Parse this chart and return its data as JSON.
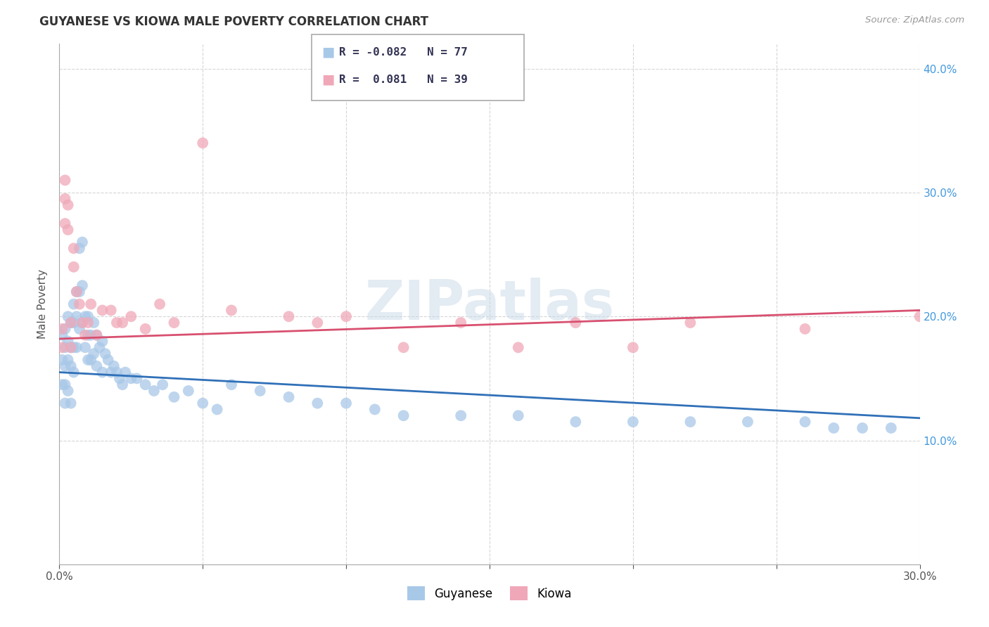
{
  "title": "GUYANESE VS KIOWA MALE POVERTY CORRELATION CHART",
  "source": "Source: ZipAtlas.com",
  "ylabel": "Male Poverty",
  "xlim": [
    0.0,
    0.3
  ],
  "ylim": [
    0.0,
    0.42
  ],
  "xticks": [
    0.0,
    0.05,
    0.1,
    0.15,
    0.2,
    0.25,
    0.3
  ],
  "xtick_labels": [
    "0.0%",
    "",
    "",
    "",
    "",
    "",
    "30.0%"
  ],
  "yticks": [
    0.0,
    0.1,
    0.2,
    0.3,
    0.4
  ],
  "ytick_labels_right": [
    "",
    "10.0%",
    "20.0%",
    "30.0%",
    "40.0%"
  ],
  "background_color": "#ffffff",
  "grid_color": "#cccccc",
  "watermark": "ZIPatlas",
  "legend_R1": "R = -0.082",
  "legend_N1": "N = 77",
  "legend_R2": "R =  0.081",
  "legend_N2": "N = 39",
  "guyanese_color": "#a8c8e8",
  "kiowa_color": "#f0a8b8",
  "guyanese_line_color": "#3070b8",
  "kiowa_line_color": "#d85070",
  "guyanese_x": [
    0.001,
    0.001,
    0.001,
    0.002,
    0.002,
    0.002,
    0.002,
    0.002,
    0.003,
    0.003,
    0.003,
    0.003,
    0.004,
    0.004,
    0.004,
    0.004,
    0.005,
    0.005,
    0.005,
    0.005,
    0.006,
    0.006,
    0.006,
    0.007,
    0.007,
    0.007,
    0.008,
    0.008,
    0.008,
    0.009,
    0.009,
    0.01,
    0.01,
    0.01,
    0.011,
    0.011,
    0.012,
    0.012,
    0.013,
    0.013,
    0.014,
    0.015,
    0.015,
    0.016,
    0.017,
    0.018,
    0.019,
    0.02,
    0.021,
    0.022,
    0.023,
    0.025,
    0.027,
    0.03,
    0.033,
    0.036,
    0.04,
    0.045,
    0.05,
    0.055,
    0.06,
    0.07,
    0.08,
    0.09,
    0.1,
    0.11,
    0.12,
    0.14,
    0.16,
    0.18,
    0.2,
    0.22,
    0.24,
    0.26,
    0.27,
    0.28,
    0.29
  ],
  "guyanese_y": [
    0.185,
    0.165,
    0.145,
    0.19,
    0.175,
    0.16,
    0.145,
    0.13,
    0.2,
    0.18,
    0.165,
    0.14,
    0.195,
    0.175,
    0.16,
    0.13,
    0.21,
    0.195,
    0.175,
    0.155,
    0.22,
    0.2,
    0.175,
    0.255,
    0.22,
    0.19,
    0.26,
    0.225,
    0.195,
    0.2,
    0.175,
    0.2,
    0.185,
    0.165,
    0.185,
    0.165,
    0.195,
    0.17,
    0.185,
    0.16,
    0.175,
    0.18,
    0.155,
    0.17,
    0.165,
    0.155,
    0.16,
    0.155,
    0.15,
    0.145,
    0.155,
    0.15,
    0.15,
    0.145,
    0.14,
    0.145,
    0.135,
    0.14,
    0.13,
    0.125,
    0.145,
    0.14,
    0.135,
    0.13,
    0.13,
    0.125,
    0.12,
    0.12,
    0.12,
    0.115,
    0.115,
    0.115,
    0.115,
    0.115,
    0.11,
    0.11,
    0.11
  ],
  "kiowa_x": [
    0.001,
    0.001,
    0.002,
    0.002,
    0.002,
    0.003,
    0.003,
    0.004,
    0.004,
    0.005,
    0.005,
    0.006,
    0.007,
    0.008,
    0.009,
    0.01,
    0.011,
    0.013,
    0.015,
    0.018,
    0.02,
    0.022,
    0.025,
    0.03,
    0.035,
    0.04,
    0.05,
    0.06,
    0.08,
    0.09,
    0.1,
    0.12,
    0.14,
    0.16,
    0.18,
    0.2,
    0.22,
    0.26,
    0.3
  ],
  "kiowa_y": [
    0.19,
    0.175,
    0.31,
    0.295,
    0.275,
    0.29,
    0.27,
    0.195,
    0.175,
    0.255,
    0.24,
    0.22,
    0.21,
    0.195,
    0.185,
    0.195,
    0.21,
    0.185,
    0.205,
    0.205,
    0.195,
    0.195,
    0.2,
    0.19,
    0.21,
    0.195,
    0.34,
    0.205,
    0.2,
    0.195,
    0.2,
    0.175,
    0.195,
    0.175,
    0.195,
    0.175,
    0.195,
    0.19,
    0.2
  ]
}
